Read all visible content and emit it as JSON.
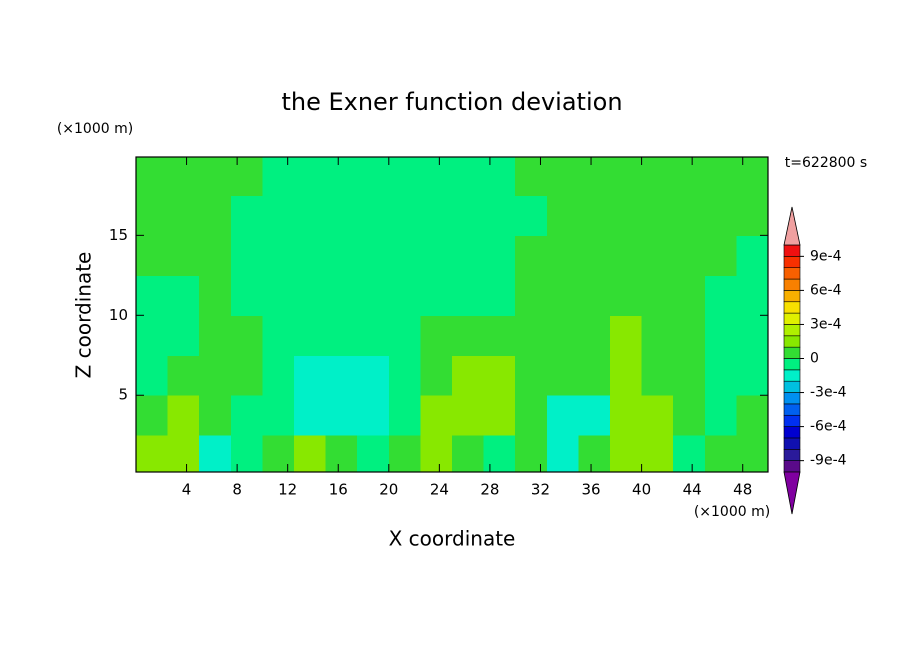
{
  "chart_data": {
    "type": "contour",
    "title": "the Exner function deviation",
    "x_label": "X coordinate",
    "y_label": "Z coordinate",
    "x_unit": "(×1000 m)",
    "y_unit": "(×1000 m)",
    "annotation": "t=622800 s",
    "xlim": [
      0,
      50
    ],
    "ylim": [
      0.2,
      19.9
    ],
    "xticks": [
      4,
      8,
      12,
      16,
      20,
      24,
      28,
      32,
      36,
      40,
      44,
      48
    ],
    "yticks": [
      5,
      10,
      15
    ],
    "x": [
      1.25,
      3.75,
      6.25,
      8.75,
      11.25,
      13.75,
      16.25,
      18.75,
      21.25,
      23.75,
      26.25,
      28.75,
      31.25,
      33.75,
      36.25,
      38.75,
      41.25,
      43.75,
      46.25,
      48.75
    ],
    "y": [
      1.25,
      3.75,
      6.25,
      8.75,
      11.25,
      13.75,
      16.25,
      18.75
    ],
    "z": [
      [
        0.00015,
        0.00015,
        -0.00015,
        -5e-05,
        5e-05,
        0.00015,
        5e-05,
        -5e-05,
        5e-05,
        0.00015,
        5e-05,
        -5e-05,
        5e-05,
        -0.00015,
        5e-05,
        0.00015,
        0.00015,
        -5e-05,
        5e-05,
        5e-05
      ],
      [
        5e-05,
        0.00015,
        5e-05,
        -5e-05,
        -5e-05,
        -0.00015,
        -0.00015,
        -0.00015,
        -5e-05,
        0.00015,
        0.00015,
        0.00015,
        5e-05,
        -0.00015,
        -0.00015,
        0.00015,
        0.00015,
        5e-05,
        -5e-05,
        5e-05
      ],
      [
        -5e-05,
        5e-05,
        5e-05,
        5e-05,
        -5e-05,
        -0.00015,
        -0.00015,
        -0.00015,
        -5e-05,
        5e-05,
        0.00015,
        0.00015,
        5e-05,
        5e-05,
        5e-05,
        0.00015,
        5e-05,
        5e-05,
        -5e-05,
        -5e-05
      ],
      [
        -5e-05,
        -5e-05,
        5e-05,
        5e-05,
        -5e-05,
        -5e-05,
        -5e-05,
        -5e-05,
        -5e-05,
        5e-05,
        5e-05,
        5e-05,
        5e-05,
        5e-05,
        5e-05,
        0.00015,
        5e-05,
        5e-05,
        -5e-05,
        -5e-05
      ],
      [
        -5e-05,
        -5e-05,
        5e-05,
        -5e-05,
        -5e-05,
        -5e-05,
        -5e-05,
        -5e-05,
        -5e-05,
        -5e-05,
        -5e-05,
        -5e-05,
        5e-05,
        5e-05,
        5e-05,
        5e-05,
        5e-05,
        5e-05,
        -5e-05,
        -5e-05
      ],
      [
        5e-05,
        5e-05,
        5e-05,
        -5e-05,
        -5e-05,
        -5e-05,
        -5e-05,
        -5e-05,
        -5e-05,
        -5e-05,
        -5e-05,
        -5e-05,
        5e-05,
        5e-05,
        5e-05,
        5e-05,
        5e-05,
        5e-05,
        5e-05,
        -5e-05
      ],
      [
        5e-05,
        5e-05,
        5e-05,
        -5e-05,
        -5e-05,
        -5e-05,
        -5e-05,
        -5e-05,
        -5e-05,
        -5e-05,
        -5e-05,
        -5e-05,
        -5e-05,
        5e-05,
        5e-05,
        5e-05,
        5e-05,
        5e-05,
        5e-05,
        5e-05
      ],
      [
        5e-05,
        5e-05,
        5e-05,
        5e-05,
        -5e-05,
        -5e-05,
        -5e-05,
        -5e-05,
        -5e-05,
        -5e-05,
        -5e-05,
        -5e-05,
        5e-05,
        5e-05,
        5e-05,
        5e-05,
        5e-05,
        5e-05,
        5e-05,
        5e-05
      ]
    ],
    "levels": [
      -0.001,
      -0.0009,
      -0.0008,
      -0.0007,
      -0.0006,
      -0.0005,
      -0.0004,
      -0.0003,
      -0.0002,
      -0.0001,
      0,
      0.0001,
      0.0002,
      0.0003,
      0.0004,
      0.0005,
      0.0006,
      0.0007,
      0.0008,
      0.0009,
      0.001
    ],
    "colors": [
      "#5a0a8a",
      "#2a1a9a",
      "#1010b0",
      "#0000d0",
      "#0030f0",
      "#0060f0",
      "#0090f0",
      "#00c0e0",
      "#00f0c8",
      "#00f080",
      "#33dd33",
      "#88e800",
      "#b0f000",
      "#e0f000",
      "#f8e000",
      "#f8b000",
      "#f88000",
      "#f86000",
      "#f83000",
      "#f01010"
    ],
    "under_color": "#8000a0",
    "over_color": "#f0a0a0",
    "colorbar_ticks": [
      {
        "value": 0.0009,
        "label": "9e-4"
      },
      {
        "value": 0.0006,
        "label": "6e-4"
      },
      {
        "value": 0.0003,
        "label": "3e-4"
      },
      0,
      {
        "value": -0.0003,
        "label": "-3e-4"
      },
      {
        "value": -0.0006,
        "label": "-6e-4"
      },
      {
        "value": -0.0009,
        "label": "-9e-4"
      }
    ]
  }
}
